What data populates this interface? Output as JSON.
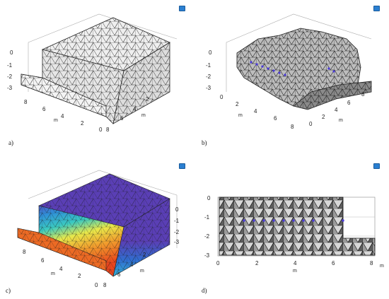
{
  "panels": [
    {
      "label": "a)",
      "view": "3D mesh of geometry"
    },
    {
      "label": "b)",
      "view": "3D cutaway mesh with point markers"
    },
    {
      "label": "c)",
      "view": "3D colored field over mesh"
    },
    {
      "label": "d)",
      "view": "2D cross-section mesh"
    }
  ],
  "axes3d": {
    "z_ticks": [
      "0",
      "-1",
      "-2",
      "-3"
    ],
    "x_ticks": [
      "8",
      "6",
      "4",
      "2",
      "0"
    ],
    "y_ticks": [
      "8",
      "6",
      "4",
      "2",
      "0"
    ],
    "unit": "m"
  },
  "axes2d": {
    "x_ticks": [
      "0",
      "2",
      "4",
      "6",
      "8"
    ],
    "y_ticks": [
      "0",
      "-1",
      "-2",
      "-3"
    ],
    "x_unit": "m",
    "y_unit": "m"
  },
  "colors": {
    "mesh_face": "#eeeeee",
    "mesh_line": "#222222",
    "marker": "#4a3ad8",
    "field_top": "#5a3fb5",
    "field_low": "#e8451d"
  }
}
